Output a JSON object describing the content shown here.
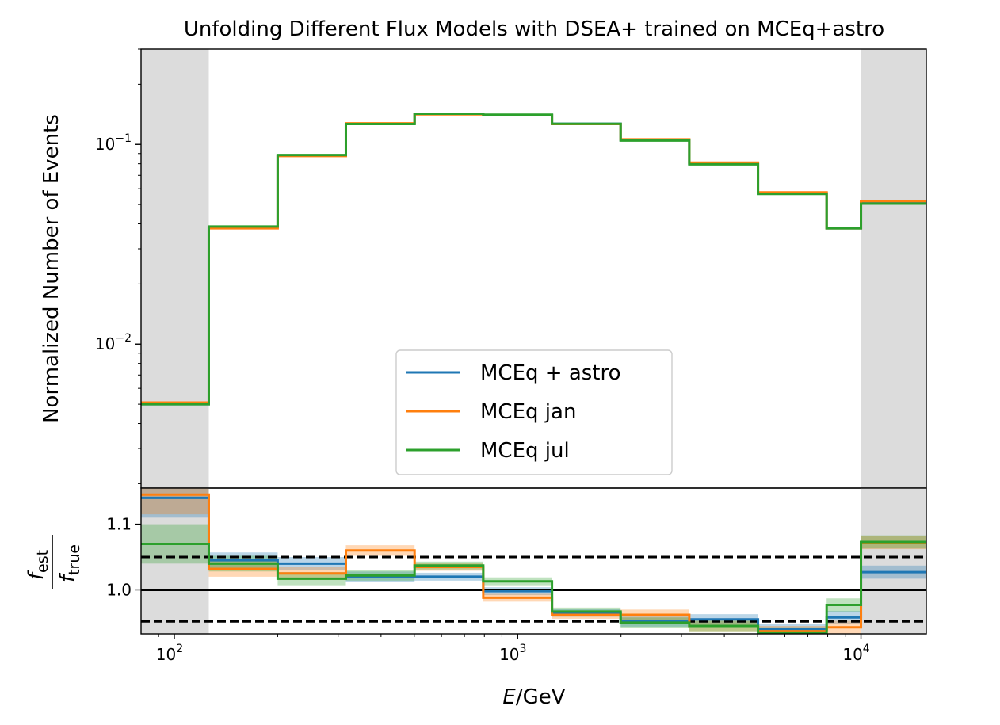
{
  "chart_data": [
    {
      "type": "line",
      "panel": "main",
      "title": "Unfolding Different Flux Models with DSEA+ trained on MCEq+astro",
      "ylabel": "Normalized Number of Events",
      "xscale": "log",
      "yscale": "log",
      "xlim": [
        80,
        15500
      ],
      "ylim": [
        0.0019,
        0.3
      ],
      "yticks": [
        {
          "value": 0.01,
          "label": "10",
          "exp": "−2"
        },
        {
          "value": 0.1,
          "label": "10",
          "exp": "−1"
        }
      ],
      "shaded_regions": [
        [
          80,
          126
        ],
        [
          10000,
          15500
        ]
      ],
      "bin_edges": [
        80,
        126,
        200,
        316,
        501,
        794,
        1259,
        1995,
        3162,
        5012,
        7943,
        10000,
        15500
      ],
      "series": [
        {
          "name": "MCEq + astro",
          "color": "#1f77b4",
          "values": [
            0.005,
            0.0385,
            0.088,
            0.127,
            0.142,
            0.1405,
            0.127,
            0.105,
            0.08,
            0.057,
            0.038,
            0.051
          ]
        },
        {
          "name": "MCEq jan",
          "color": "#ff7f0e",
          "values": [
            0.0051,
            0.038,
            0.0875,
            0.1275,
            0.1415,
            0.14,
            0.1265,
            0.106,
            0.081,
            0.0575,
            0.038,
            0.052
          ]
        },
        {
          "name": "MCEq jul",
          "color": "#2ca02c",
          "values": [
            0.005,
            0.0388,
            0.0885,
            0.1265,
            0.1425,
            0.1408,
            0.1268,
            0.1045,
            0.0795,
            0.0565,
            0.038,
            0.0505
          ]
        }
      ],
      "legend": {
        "placement": "lower-center",
        "entries": [
          "MCEq + astro",
          "MCEq jan",
          "MCEq jul"
        ]
      },
      "grid": false
    },
    {
      "type": "line",
      "panel": "ratio",
      "ylabel_num": "f",
      "ylabel_num_sub": "est",
      "ylabel_den": "f",
      "ylabel_den_sub": "true",
      "xlabel_italic": "E",
      "xlabel_rest": "/GeV",
      "xscale": "log",
      "xlim": [
        80,
        15500
      ],
      "ylim": [
        0.933,
        1.155
      ],
      "yticks": [
        {
          "value": 1.0,
          "label": "1.0"
        },
        {
          "value": 1.1,
          "label": "1.1"
        }
      ],
      "xticks": [
        {
          "value": 100,
          "label": "10",
          "exp": "2"
        },
        {
          "value": 1000,
          "label": "10",
          "exp": "3"
        },
        {
          "value": 10000,
          "label": "10",
          "exp": "4"
        }
      ],
      "hlines": [
        {
          "y": 1.0,
          "style": "solid"
        },
        {
          "y": 1.05,
          "style": "dashed"
        },
        {
          "y": 0.952,
          "style": "dashed"
        }
      ],
      "shaded_regions": [
        [
          80,
          126
        ],
        [
          10000,
          15500
        ]
      ],
      "bin_edges": [
        80,
        126,
        200,
        316,
        501,
        794,
        1259,
        1995,
        3162,
        5012,
        7943,
        10000,
        15500
      ],
      "series": [
        {
          "name": "MCEq + astro",
          "color": "#1f77b4",
          "values": [
            1.14,
            1.045,
            1.04,
            1.02,
            1.02,
            0.998,
            0.965,
            0.952,
            0.955,
            0.94,
            0.958,
            1.027
          ],
          "err": [
            0.03,
            0.012,
            0.01,
            0.008,
            0.006,
            0.006,
            0.006,
            0.008,
            0.008,
            0.008,
            0.01,
            0.01
          ]
        },
        {
          "name": "MCEq jan",
          "color": "#ff7f0e",
          "values": [
            1.145,
            1.032,
            1.025,
            1.06,
            1.035,
            0.988,
            0.962,
            0.962,
            0.945,
            0.937,
            0.943,
            1.072
          ],
          "err": [
            0.03,
            0.012,
            0.01,
            0.008,
            0.006,
            0.006,
            0.006,
            0.008,
            0.008,
            0.008,
            0.01,
            0.01
          ]
        },
        {
          "name": "MCEq jul",
          "color": "#2ca02c",
          "values": [
            1.07,
            1.04,
            1.017,
            1.022,
            1.037,
            1.013,
            0.967,
            0.95,
            0.945,
            0.935,
            0.977,
            1.073
          ],
          "err": [
            0.03,
            0.012,
            0.01,
            0.008,
            0.006,
            0.006,
            0.006,
            0.008,
            0.008,
            0.008,
            0.01,
            0.01
          ]
        }
      ]
    }
  ]
}
